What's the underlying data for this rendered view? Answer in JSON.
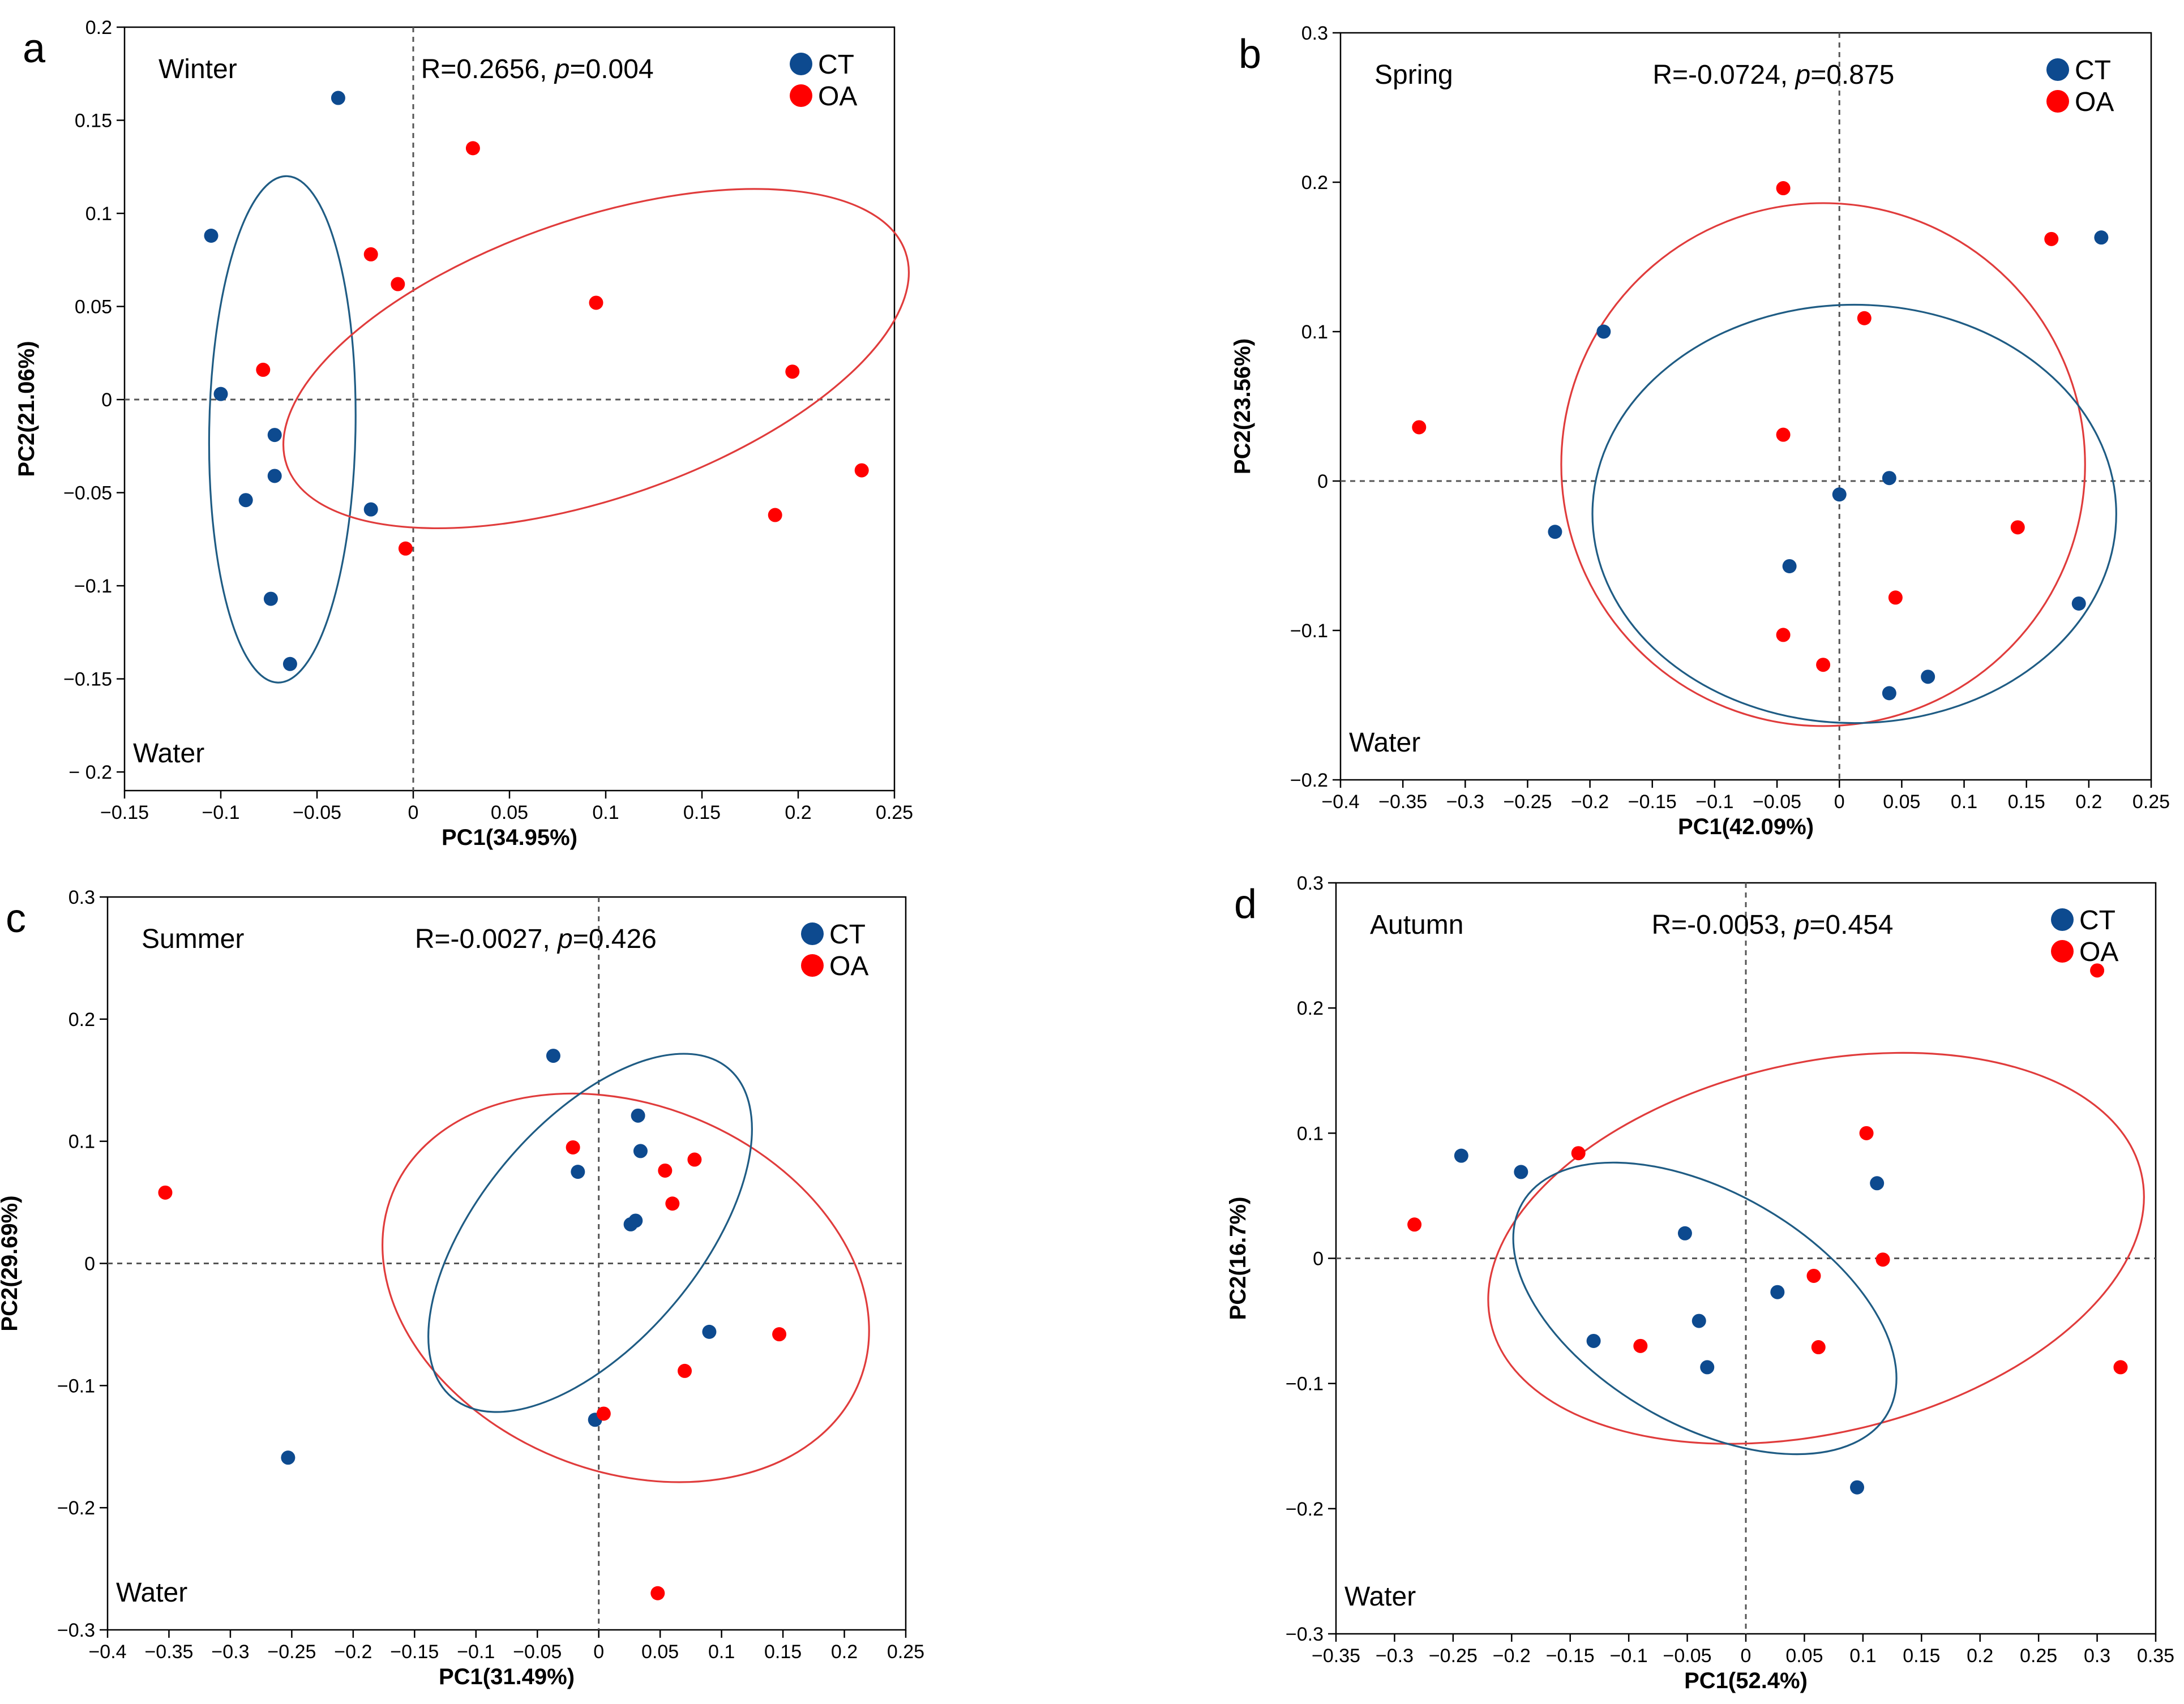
{
  "colors": {
    "CT": "#0d4a8f",
    "OA": "#ff0000",
    "ellipse_CT": "#1f5c84",
    "ellipse_OA": "#e03c3c"
  },
  "chart_data": [
    {
      "panel": "a",
      "type": "scatter",
      "season": "Winter",
      "stat_prefix": "R=0.2656, ",
      "p_label": "p",
      "stat_suffix": "=0.004",
      "water": "Water",
      "xlabel": "PC1(34.95%)",
      "ylabel": "PC2(21.06%)",
      "xlim": [
        -0.15,
        0.25
      ],
      "ylim": [
        -0.21,
        0.2
      ],
      "xticks": [
        -0.15,
        -0.1,
        -0.05,
        0,
        0.05,
        0.1,
        0.15,
        0.2,
        0.25
      ],
      "xtick_labels": [
        "−0.15",
        "−0.1",
        "−0.05",
        "0",
        "0.05",
        "0.1",
        "0.15",
        "0.2",
        "0.25"
      ],
      "yticks": [
        -0.2,
        -0.15,
        -0.1,
        -0.05,
        0,
        0.05,
        0.1,
        0.15,
        0.2
      ],
      "ytick_labels": [
        "− 0.2",
        "−0.15",
        "−0.1",
        "−0.05",
        "0",
        "0.05",
        "0.1",
        "0.15",
        "0.2"
      ],
      "legend": [
        "CT",
        "OA"
      ],
      "series": [
        {
          "name": "CT",
          "points": [
            [
              -0.039,
              0.162
            ],
            [
              -0.105,
              0.088
            ],
            [
              -0.1,
              0.003
            ],
            [
              -0.072,
              -0.019
            ],
            [
              -0.072,
              -0.041
            ],
            [
              -0.087,
              -0.054
            ],
            [
              -0.022,
              -0.059
            ],
            [
              -0.074,
              -0.107
            ],
            [
              -0.064,
              -0.142
            ]
          ]
        },
        {
          "name": "OA",
          "points": [
            [
              0.031,
              0.135
            ],
            [
              -0.022,
              0.078
            ],
            [
              -0.008,
              0.062
            ],
            [
              0.095,
              0.052
            ],
            [
              -0.078,
              0.016
            ],
            [
              0.197,
              0.015
            ],
            [
              0.233,
              -0.038
            ],
            [
              0.188,
              -0.062
            ],
            [
              -0.004,
              -0.08
            ]
          ]
        }
      ],
      "ellipses": [
        {
          "name": "CT",
          "cx": -0.068,
          "cy": -0.016,
          "rx": 0.038,
          "ry": 0.136,
          "angle": 1
        },
        {
          "name": "OA",
          "cx": 0.095,
          "cy": 0.022,
          "rx": 0.17,
          "ry": 0.075,
          "angle": -19
        }
      ]
    },
    {
      "panel": "b",
      "type": "scatter",
      "season": "Spring",
      "stat_prefix": "R=-0.0724, ",
      "p_label": "p",
      "stat_suffix": "=0.875",
      "water": "Water",
      "xlabel": "PC1(42.09%)",
      "ylabel": "PC2(23.56%)",
      "xlim": [
        -0.4,
        0.25
      ],
      "ylim": [
        -0.2,
        0.3
      ],
      "xticks": [
        -0.4,
        -0.35,
        -0.3,
        -0.25,
        -0.2,
        -0.15,
        -0.1,
        -0.05,
        0,
        0.05,
        0.1,
        0.15,
        0.2,
        0.25
      ],
      "xtick_labels": [
        "−0.4",
        "−0.35",
        "−0.3",
        "−0.25",
        "−0.2",
        "−0.15",
        "−0.1",
        "−0.05",
        "0",
        "0.05",
        "0.1",
        "0.15",
        "0.2",
        "0.25"
      ],
      "yticks": [
        -0.2,
        -0.1,
        0,
        0.1,
        0.2,
        0.3
      ],
      "ytick_labels": [
        "−0.2",
        "−0.1",
        "0",
        "0.1",
        "0.2",
        "0.3"
      ],
      "legend": [
        "CT",
        "OA"
      ],
      "series": [
        {
          "name": "CT",
          "points": [
            [
              0.21,
              0.163
            ],
            [
              -0.189,
              0.1
            ],
            [
              0.04,
              0.002
            ],
            [
              0,
              -0.009
            ],
            [
              -0.228,
              -0.034
            ],
            [
              -0.04,
              -0.057
            ],
            [
              0.192,
              -0.082
            ],
            [
              0.071,
              -0.131
            ],
            [
              0.04,
              -0.142
            ]
          ]
        },
        {
          "name": "OA",
          "points": [
            [
              -0.045,
              0.196
            ],
            [
              0.17,
              0.162
            ],
            [
              0.02,
              0.109
            ],
            [
              -0.337,
              0.036
            ],
            [
              -0.045,
              0.031
            ],
            [
              0.143,
              -0.031
            ],
            [
              0.045,
              -0.078
            ],
            [
              -0.045,
              -0.103
            ],
            [
              -0.013,
              -0.123
            ]
          ]
        }
      ],
      "ellipses": [
        {
          "name": "OA",
          "cx": -0.013,
          "cy": 0.011,
          "rx": 0.21,
          "ry": 0.175,
          "angle": 0
        },
        {
          "name": "CT",
          "cx": 0.012,
          "cy": -0.022,
          "rx": 0.21,
          "ry": 0.14,
          "angle": 0
        }
      ]
    },
    {
      "panel": "c",
      "type": "scatter",
      "season": "Summer",
      "stat_prefix": "R=-0.0027, ",
      "p_label": "p",
      "stat_suffix": "=0.426",
      "water": "Water",
      "xlabel": "PC1(31.49%)",
      "ylabel": "PC2(29.69%)",
      "xlim": [
        -0.4,
        0.25
      ],
      "ylim": [
        -0.3,
        0.3
      ],
      "xticks": [
        -0.4,
        -0.35,
        -0.3,
        -0.25,
        -0.2,
        -0.15,
        -0.1,
        -0.05,
        0,
        0.05,
        0.1,
        0.15,
        0.2,
        0.25
      ],
      "xtick_labels": [
        "−0.4",
        "−0.35",
        "−0.3",
        "−0.25",
        "−0.2",
        "−0.15",
        "−0.1",
        "−0.05",
        "0",
        "0.05",
        "0.1",
        "0.15",
        "0.2",
        "0.25"
      ],
      "yticks": [
        -0.3,
        -0.2,
        -0.1,
        0,
        0.1,
        0.2,
        0.3
      ],
      "ytick_labels": [
        "−0.3",
        "−0.2",
        "−0.1",
        "0",
        "0.1",
        "0.2",
        "0.3"
      ],
      "legend": [
        "CT",
        "OA"
      ],
      "series": [
        {
          "name": "CT",
          "points": [
            [
              -0.037,
              0.17
            ],
            [
              0.032,
              0.121
            ],
            [
              0.034,
              0.092
            ],
            [
              -0.017,
              0.075
            ],
            [
              0.03,
              0.035
            ],
            [
              0.026,
              0.032
            ],
            [
              0.09,
              -0.056
            ],
            [
              -0.003,
              -0.128
            ],
            [
              -0.253,
              -0.159
            ]
          ]
        },
        {
          "name": "OA",
          "points": [
            [
              -0.353,
              0.058
            ],
            [
              -0.021,
              0.095
            ],
            [
              0.054,
              0.076
            ],
            [
              0.078,
              0.085
            ],
            [
              0.06,
              0.049
            ],
            [
              0.147,
              -0.058
            ],
            [
              0.07,
              -0.088
            ],
            [
              0.004,
              -0.123
            ],
            [
              0.048,
              -0.27
            ]
          ]
        }
      ],
      "ellipses": [
        {
          "name": "OA",
          "cx": 0.022,
          "cy": -0.02,
          "rx": 0.205,
          "ry": 0.15,
          "angle": 22
        },
        {
          "name": "CT",
          "cx": -0.007,
          "cy": 0.025,
          "rx": 0.175,
          "ry": 0.09,
          "angle": -50
        }
      ]
    },
    {
      "panel": "d",
      "type": "scatter",
      "season": "Autumn",
      "stat_prefix": "R=-0.0053, ",
      "p_label": "p",
      "stat_suffix": "=0.454",
      "water": "Water",
      "xlabel": "PC1(52.4%)",
      "ylabel": "PC2(16.7%)",
      "xlim": [
        -0.35,
        0.35
      ],
      "ylim": [
        -0.3,
        0.3
      ],
      "xticks": [
        -0.35,
        -0.3,
        -0.25,
        -0.2,
        -0.15,
        -0.1,
        -0.05,
        0,
        0.05,
        0.1,
        0.15,
        0.2,
        0.25,
        0.3,
        0.35
      ],
      "xtick_labels": [
        "−0.35",
        "−0.3",
        "−0.25",
        "−0.2",
        "−0.15",
        "−0.1",
        "−0.05",
        "0",
        "0.05",
        "0.1",
        "0.15",
        "0.2",
        "0.25",
        "0.3",
        "0.35"
      ],
      "yticks": [
        -0.3,
        -0.2,
        -0.1,
        0,
        0.1,
        0.2,
        0.3
      ],
      "ytick_labels": [
        "−0.3",
        "−0.2",
        "−0.1",
        "0",
        "0.1",
        "0.2",
        "0.3"
      ],
      "legend": [
        "CT",
        "OA"
      ],
      "series": [
        {
          "name": "CT",
          "points": [
            [
              -0.243,
              0.082
            ],
            [
              -0.192,
              0.069
            ],
            [
              0.112,
              0.06
            ],
            [
              -0.052,
              0.02
            ],
            [
              0.027,
              -0.027
            ],
            [
              -0.04,
              -0.05
            ],
            [
              -0.13,
              -0.066
            ],
            [
              -0.033,
              -0.087
            ],
            [
              0.095,
              -0.183
            ]
          ]
        },
        {
          "name": "OA",
          "points": [
            [
              0.3,
              0.23
            ],
            [
              0.103,
              0.1
            ],
            [
              -0.143,
              0.084
            ],
            [
              -0.283,
              0.027
            ],
            [
              0.117,
              -0.001
            ],
            [
              0.058,
              -0.014
            ],
            [
              -0.09,
              -0.07
            ],
            [
              0.062,
              -0.071
            ],
            [
              0.32,
              -0.087
            ]
          ]
        }
      ],
      "ellipses": [
        {
          "name": "OA",
          "cx": 0.06,
          "cy": 0.008,
          "rx": 0.285,
          "ry": 0.148,
          "angle": -13
        },
        {
          "name": "CT",
          "cx": -0.035,
          "cy": -0.04,
          "rx": 0.18,
          "ry": 0.093,
          "angle": 30
        }
      ]
    }
  ]
}
